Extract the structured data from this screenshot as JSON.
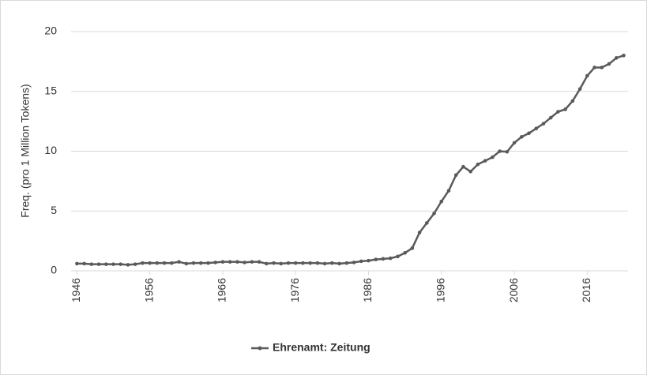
{
  "chart_data": {
    "type": "line",
    "y_label": "Freq. (pro 1 Million Tokens)",
    "x": [
      1946,
      1947,
      1948,
      1949,
      1950,
      1951,
      1952,
      1953,
      1954,
      1955,
      1956,
      1957,
      1958,
      1959,
      1960,
      1961,
      1962,
      1963,
      1964,
      1965,
      1966,
      1967,
      1968,
      1969,
      1970,
      1971,
      1972,
      1973,
      1974,
      1975,
      1976,
      1977,
      1978,
      1979,
      1980,
      1981,
      1982,
      1983,
      1984,
      1985,
      1986,
      1987,
      1988,
      1989,
      1990,
      1991,
      1992,
      1993,
      1994,
      1995,
      1996,
      1997,
      1998,
      1999,
      2000,
      2001,
      2002,
      2003,
      2004,
      2005,
      2006,
      2007,
      2008,
      2009,
      2010,
      2011,
      2012,
      2013,
      2014,
      2015,
      2016,
      2017,
      2018,
      2019,
      2020,
      2021
    ],
    "series": [
      {
        "name": "Ehrenamt: Zeitung",
        "color": "#5a5a5a",
        "values": [
          0.6,
          0.6,
          0.55,
          0.55,
          0.55,
          0.55,
          0.55,
          0.5,
          0.55,
          0.65,
          0.65,
          0.65,
          0.65,
          0.65,
          0.75,
          0.6,
          0.65,
          0.65,
          0.65,
          0.7,
          0.75,
          0.75,
          0.75,
          0.7,
          0.75,
          0.75,
          0.6,
          0.65,
          0.6,
          0.65,
          0.65,
          0.65,
          0.65,
          0.65,
          0.6,
          0.65,
          0.6,
          0.65,
          0.7,
          0.8,
          0.85,
          0.95,
          1.0,
          1.05,
          1.2,
          1.5,
          1.9,
          3.2,
          4.0,
          4.8,
          5.8,
          6.7,
          8.0,
          8.7,
          8.3,
          8.9,
          9.2,
          9.5,
          10.0,
          9.95,
          10.7,
          11.2,
          11.5,
          11.9,
          12.3,
          12.8,
          13.3,
          13.5,
          14.2,
          15.2,
          16.3,
          17.0,
          17.0,
          17.3,
          17.8,
          18.0
        ]
      }
    ],
    "xlim": [
      1945.2,
      2021.6
    ],
    "xticks": [
      1946,
      1956,
      1966,
      1976,
      1986,
      1996,
      2006,
      2016
    ],
    "ylim": [
      0,
      20
    ],
    "yticks": [
      0,
      5,
      10,
      15,
      20
    ],
    "grid": true,
    "legend": "bottom"
  }
}
